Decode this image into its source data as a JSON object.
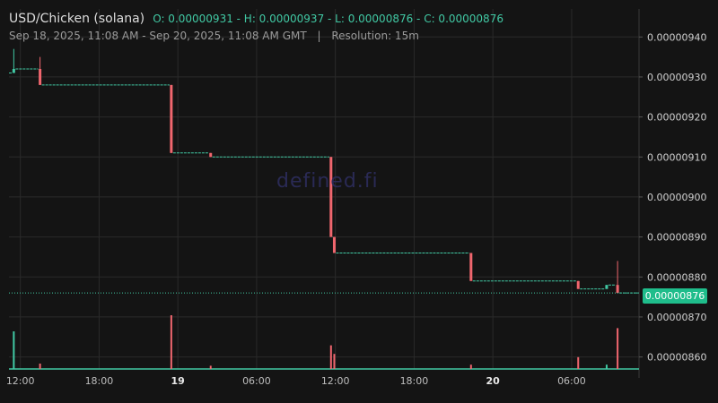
{
  "header": {
    "pair": "USD/Chicken (solana)",
    "ohlc": "O: 0.00000931 - H: 0.00000937 - L: 0.00000876 - C: 0.00000876",
    "range": "Sep 18, 2025, 11:08 AM - Sep 20, 2025, 11:08 AM GMT",
    "separator": "|",
    "resolution": "Resolution: 15m"
  },
  "watermark": "defined.fi",
  "colors": {
    "up": "#41c9a4",
    "down": "#f0666e",
    "background": "#141414",
    "grid": "#2a2a2a",
    "badge": "#1fbd8b"
  },
  "chart_data": {
    "type": "candlestick",
    "current_price": 8.76e-06,
    "current_price_label": "0.00000876",
    "y_range": [
      8.57e-06,
      9.47e-06
    ],
    "y_ticks": [
      {
        "value": 9.4e-06,
        "label": "0.00000940"
      },
      {
        "value": 9.3e-06,
        "label": "0.00000930"
      },
      {
        "value": 9.2e-06,
        "label": "0.00000920"
      },
      {
        "value": 9.1e-06,
        "label": "0.00000910"
      },
      {
        "value": 9e-06,
        "label": "0.00000900"
      },
      {
        "value": 8.9e-06,
        "label": "0.00000890"
      },
      {
        "value": 8.8e-06,
        "label": "0.00000880"
      },
      {
        "value": 8.7e-06,
        "label": "0.00000870"
      },
      {
        "value": 8.6e-06,
        "label": "0.00000860"
      }
    ],
    "x_range": [
      "2025-09-18T11:08Z",
      "2025-09-20T11:08Z"
    ],
    "x_ticks": [
      {
        "time": "2025-09-18T12:00Z",
        "label": "12:00",
        "bold": false
      },
      {
        "time": "2025-09-18T18:00Z",
        "label": "18:00",
        "bold": false
      },
      {
        "time": "2025-09-19T00:00Z",
        "label": "19",
        "bold": true
      },
      {
        "time": "2025-09-19T06:00Z",
        "label": "06:00",
        "bold": false
      },
      {
        "time": "2025-09-19T12:00Z",
        "label": "12:00",
        "bold": false
      },
      {
        "time": "2025-09-19T18:00Z",
        "label": "18:00",
        "bold": false
      },
      {
        "time": "2025-09-20T00:00Z",
        "label": "20",
        "bold": true
      },
      {
        "time": "2025-09-20T06:00Z",
        "label": "06:00",
        "bold": false
      }
    ],
    "candles": [
      {
        "time": "2025-09-18T11:30Z",
        "open": 9.31e-06,
        "high": 9.37e-06,
        "low": 9.31e-06,
        "close": 9.32e-06
      },
      {
        "time": "2025-09-18T13:30Z",
        "open": 9.32e-06,
        "high": 9.35e-06,
        "low": 9.28e-06,
        "close": 9.28e-06
      },
      {
        "time": "2025-09-18T23:30Z",
        "open": 9.28e-06,
        "high": 9.28e-06,
        "low": 9.11e-06,
        "close": 9.11e-06
      },
      {
        "time": "2025-09-19T02:30Z",
        "open": 9.11e-06,
        "high": 9.11e-06,
        "low": 9.1e-06,
        "close": 9.1e-06
      },
      {
        "time": "2025-09-19T11:40Z",
        "open": 9.1e-06,
        "high": 9.1e-06,
        "low": 8.9e-06,
        "close": 8.9e-06
      },
      {
        "time": "2025-09-19T11:55Z",
        "open": 8.9e-06,
        "high": 8.9e-06,
        "low": 8.86e-06,
        "close": 8.86e-06
      },
      {
        "time": "2025-09-19T22:20Z",
        "open": 8.86e-06,
        "high": 8.86e-06,
        "low": 8.79e-06,
        "close": 8.79e-06
      },
      {
        "time": "2025-09-20T06:30Z",
        "open": 8.79e-06,
        "high": 8.79e-06,
        "low": 8.77e-06,
        "close": 8.77e-06
      },
      {
        "time": "2025-09-20T08:40Z",
        "open": 8.77e-06,
        "high": 8.78e-06,
        "low": 8.77e-06,
        "close": 8.78e-06
      },
      {
        "time": "2025-09-20T09:30Z",
        "open": 8.78e-06,
        "high": 8.84e-06,
        "low": 8.76e-06,
        "close": 8.76e-06
      }
    ],
    "volume": [
      {
        "time": "2025-09-18T11:30Z",
        "value": 0.35,
        "dir": "up"
      },
      {
        "time": "2025-09-18T13:30Z",
        "value": 0.05,
        "dir": "down"
      },
      {
        "time": "2025-09-18T23:30Z",
        "value": 0.5,
        "dir": "down"
      },
      {
        "time": "2025-09-19T02:30Z",
        "value": 0.03,
        "dir": "down"
      },
      {
        "time": "2025-09-19T11:40Z",
        "value": 0.22,
        "dir": "down"
      },
      {
        "time": "2025-09-19T11:55Z",
        "value": 0.14,
        "dir": "down"
      },
      {
        "time": "2025-09-19T22:20Z",
        "value": 0.04,
        "dir": "down"
      },
      {
        "time": "2025-09-20T06:30Z",
        "value": 0.11,
        "dir": "down"
      },
      {
        "time": "2025-09-20T08:40Z",
        "value": 0.04,
        "dir": "up"
      },
      {
        "time": "2025-09-20T09:30Z",
        "value": 0.38,
        "dir": "down"
      }
    ],
    "grid": true
  }
}
